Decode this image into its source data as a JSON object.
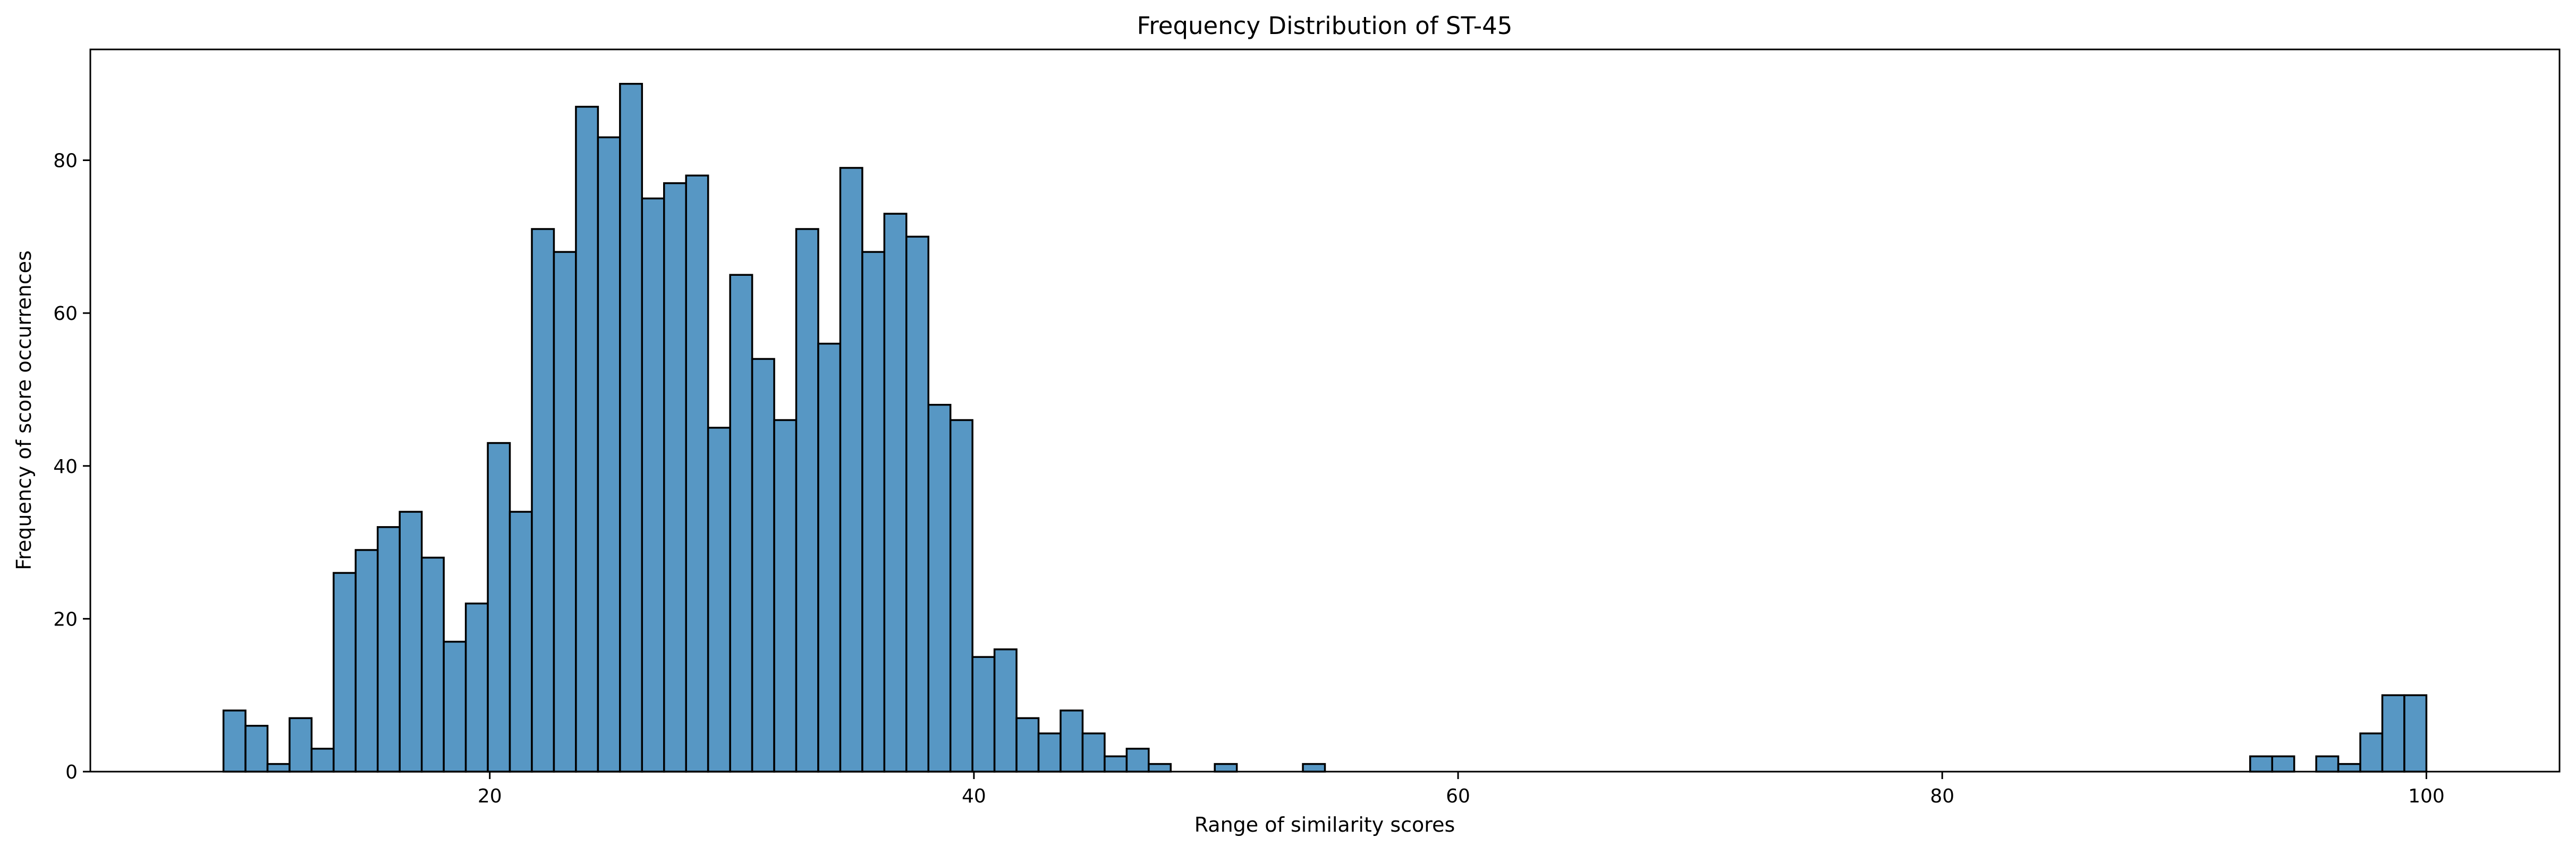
{
  "chart_data": {
    "type": "bar",
    "title": "Frequency Distribution of ST-45",
    "xlabel": "Range of similarity scores",
    "ylabel": "Frequency of score occurrences",
    "xlim": [
      3.5,
      105.5
    ],
    "ylim": [
      0,
      94.5
    ],
    "xticks": [
      20,
      40,
      60,
      80,
      100
    ],
    "yticks": [
      0,
      20,
      40,
      60,
      80
    ],
    "bin_start": 9,
    "bin_width": 0.91,
    "values": [
      8,
      6,
      1,
      7,
      3,
      26,
      29,
      32,
      34,
      28,
      17,
      22,
      43,
      34,
      71,
      68,
      87,
      83,
      90,
      75,
      77,
      78,
      45,
      65,
      54,
      46,
      71,
      56,
      79,
      68,
      73,
      70,
      48,
      46,
      15,
      16,
      7,
      5,
      8,
      5,
      2,
      3,
      1,
      0,
      0,
      1,
      0,
      0,
      0,
      1,
      0,
      0,
      0,
      0,
      0,
      0,
      0,
      0,
      0,
      0,
      0,
      0,
      0,
      0,
      0,
      0,
      0,
      0,
      0,
      0,
      0,
      0,
      0,
      0,
      0,
      0,
      0,
      0,
      0,
      0,
      0,
      0,
      0,
      0,
      0,
      0,
      0,
      0,
      0,
      0,
      0,
      0,
      2,
      2,
      0,
      2,
      1,
      5,
      10,
      10
    ],
    "grid": false,
    "colors": {
      "bar_fill": "#5797c4",
      "bar_edge": "#000000"
    }
  }
}
